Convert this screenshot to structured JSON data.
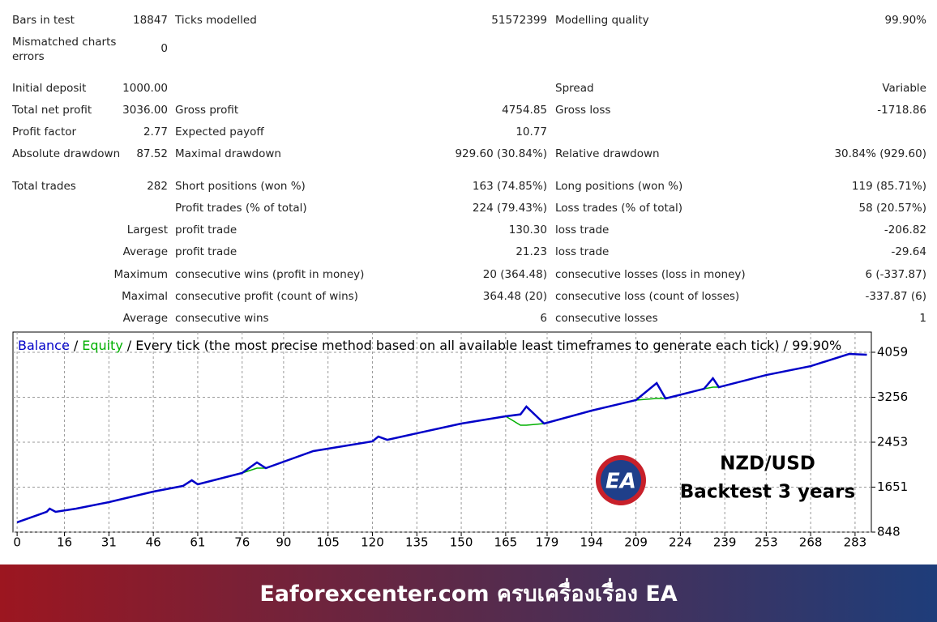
{
  "report": {
    "rows": [
      {
        "a_label": "Bars in test",
        "a_value": "18847",
        "b_label": "Ticks modelled",
        "b_value": "51572399",
        "c_label": "Modelling quality",
        "c_value": "99.90%"
      },
      {
        "a_label": "Mismatched charts errors",
        "a_value": "0"
      },
      {
        "a_label": "Initial deposit",
        "a_value": "1000.00",
        "c_label": "Spread",
        "c_value": "Variable"
      },
      {
        "a_label": "Total net profit",
        "a_value": "3036.00",
        "b_label": "Gross profit",
        "b_value": "4754.85",
        "c_label": "Gross loss",
        "c_value": "-1718.86"
      },
      {
        "a_label": "Profit factor",
        "a_value": "2.77",
        "b_label": "Expected payoff",
        "b_value": "10.77"
      },
      {
        "a_label": "Absolute drawdown",
        "a_value": "87.52",
        "b_label": "Maximal drawdown",
        "b_value": "929.60 (30.84%)",
        "c_label": "Relative drawdown",
        "c_value": "30.84% (929.60)"
      },
      {
        "a_label": "Total trades",
        "a_value": "282",
        "b_label": "Short positions (won %)",
        "b_value": "163 (74.85%)",
        "c_label": "Long positions (won %)",
        "c_value": "119 (85.71%)"
      },
      {
        "b_label": "Profit trades (% of total)",
        "b_value": "224 (79.43%)",
        "c_label": "Loss trades (% of total)",
        "c_value": "58 (20.57%)"
      },
      {
        "a_value": "Largest",
        "b_label": "profit trade",
        "b_value": "130.30",
        "c_label": "loss trade",
        "c_value": "-206.82"
      },
      {
        "a_value": "Average",
        "b_label": "profit trade",
        "b_value": "21.23",
        "c_label": "loss trade",
        "c_value": "-29.64"
      },
      {
        "a_value": "Maximum",
        "b_label": "consecutive wins (profit in money)",
        "b_value": "20 (364.48)",
        "c_label": "consecutive losses (loss in money)",
        "c_value": "6 (-337.87)"
      },
      {
        "a_value": "Maximal",
        "b_label": "consecutive profit (count of wins)",
        "b_value": "364.48 (20)",
        "c_label": "consecutive loss (count of losses)",
        "c_value": "-337.87 (6)"
      },
      {
        "a_value": "Average",
        "b_label": "consecutive wins",
        "b_value": "6",
        "c_label": "consecutive losses",
        "c_value": "1"
      }
    ]
  },
  "chart_data": {
    "type": "line",
    "legend_separator": "/",
    "subtitle": "Every tick (the most precise method based on all available least timeframes to generate each tick) / 99.90%",
    "x": [
      0,
      10,
      11,
      13,
      20,
      31,
      46,
      56,
      59,
      61,
      76,
      81,
      84,
      100,
      120,
      122,
      125,
      150,
      165,
      170,
      172,
      178,
      194,
      209,
      216,
      219,
      232,
      235,
      237,
      253,
      268,
      281,
      287
    ],
    "series": [
      {
        "name": "Equity",
        "color": "#00b000",
        "values": [
          1022,
          1210,
          1267,
          1210,
          1267,
          1383,
          1571,
          1672,
          1773,
          1701,
          1904,
          1990,
          1990,
          2294,
          2468,
          2554,
          2496,
          2786,
          2916,
          2757,
          2757,
          2786,
          3017,
          3205,
          3234,
          3234,
          3407,
          3436,
          3436,
          3653,
          3812,
          4029,
          4015
        ]
      },
      {
        "name": "Balance",
        "color": "#0000c8",
        "values": [
          1022,
          1210,
          1267,
          1210,
          1267,
          1383,
          1571,
          1672,
          1773,
          1701,
          1904,
          2092,
          1990,
          2294,
          2468,
          2554,
          2496,
          2786,
          2916,
          2950,
          3089,
          2786,
          3017,
          3205,
          3509,
          3234,
          3407,
          3595,
          3436,
          3653,
          3812,
          4029,
          4015
        ]
      }
    ],
    "xlim": [
      -1.4,
      288.5
    ],
    "xticks": [
      0,
      16,
      31,
      46,
      61,
      76,
      90,
      105,
      120,
      135,
      150,
      165,
      179,
      194,
      209,
      224,
      239,
      253,
      268,
      283
    ],
    "ylim": [
      848,
      4420
    ],
    "yticks": [
      848,
      1651,
      2453,
      3256,
      4059
    ],
    "grid": true
  },
  "overlay": {
    "logo_text": "EA",
    "pair": "NZD/USD",
    "caption": "Backtest 3 years"
  },
  "banner": {
    "text": "Eaforexcenter.com ครบเครื่องเรื่อง EA"
  }
}
